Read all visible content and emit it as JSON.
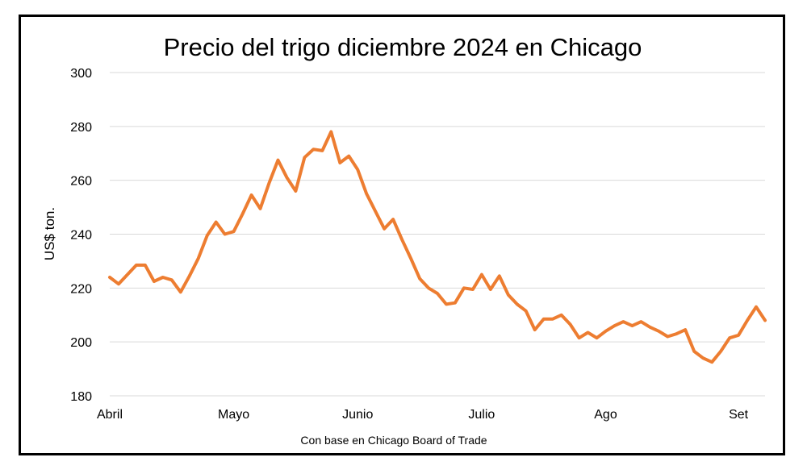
{
  "chart_data": {
    "type": "line",
    "title": "Precio del trigo diciembre 2024 en Chicago",
    "ylabel": "US$ ton.",
    "xlabel": "",
    "source_note": "Con base en Chicago Board of Trade",
    "ylim": [
      180,
      300
    ],
    "yticks": [
      180,
      200,
      220,
      240,
      260,
      280,
      300
    ],
    "grid": true,
    "legend": "none",
    "x_tick_labels": [
      {
        "label": "Abril",
        "index": 0
      },
      {
        "label": "Mayo",
        "index": 14
      },
      {
        "label": "Junio",
        "index": 28
      },
      {
        "label": "Julio",
        "index": 42
      },
      {
        "label": "Ago",
        "index": 56
      },
      {
        "label": "Set",
        "index": 71
      }
    ],
    "series": [
      {
        "color": "#ED7D31",
        "values": [
          224,
          221.5,
          225,
          228.5,
          228.5,
          222.5,
          224,
          223,
          218.5,
          224.5,
          231,
          239.5,
          244.5,
          240,
          241,
          247.5,
          254.5,
          249.5,
          259,
          267.5,
          261,
          256,
          268.5,
          271.5,
          271,
          278,
          266.5,
          269,
          264,
          255,
          248.5,
          242,
          245.5,
          238,
          231,
          223.5,
          220,
          218,
          214,
          214.5,
          220,
          219.5,
          225,
          219.5,
          224.5,
          217.5,
          214,
          211.5,
          204.5,
          208.5,
          208.5,
          210,
          206.5,
          201.5,
          203.5,
          201.5,
          204,
          206,
          207.5,
          206,
          207.5,
          205.5,
          204,
          202,
          203,
          204.5,
          196.5,
          194,
          192.5,
          196.5,
          201.5,
          202.5,
          208,
          213,
          208
        ]
      }
    ]
  }
}
